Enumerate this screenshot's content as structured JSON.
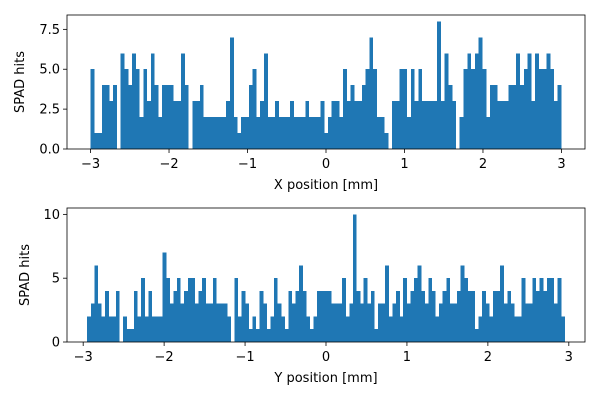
{
  "chart_data": [
    {
      "type": "bar",
      "xlabel": "X position [mm]",
      "ylabel": "SPAD hits",
      "xlim": [
        -3.3,
        3.3
      ],
      "ylim": [
        0,
        8.4
      ],
      "xticks": [
        -3,
        -2,
        -1,
        0,
        1,
        2,
        3
      ],
      "xtick_labels": [
        "−3",
        "−2",
        "−1",
        "0",
        "1",
        "2",
        "3"
      ],
      "yticks": [
        0,
        2.5,
        5,
        7.5
      ],
      "ytick_labels": [
        "0.0",
        "2.5",
        "5.0",
        "7.5"
      ],
      "bin_range": [
        -3.0,
        3.0
      ],
      "bar_color": "#1f77b4",
      "values": [
        5,
        1,
        1,
        4,
        4,
        3,
        4,
        0,
        6,
        5,
        4,
        6,
        5,
        2,
        5,
        3,
        6,
        4,
        2,
        4,
        4,
        4,
        3,
        3,
        6,
        4,
        0,
        3,
        3,
        4,
        2,
        2,
        2,
        2,
        2,
        2,
        3,
        7,
        2,
        1,
        2,
        2,
        4,
        5,
        2,
        3,
        6,
        2,
        2,
        3,
        2,
        2,
        2,
        3,
        2,
        2,
        2,
        3,
        2,
        2,
        2,
        3,
        1,
        2,
        3,
        3,
        2,
        5,
        3,
        4,
        3,
        3,
        4,
        5,
        7,
        5,
        2,
        2,
        1,
        0,
        3,
        3,
        5,
        5,
        2,
        5,
        3,
        5,
        3,
        3,
        3,
        3,
        8,
        3,
        6,
        4,
        3,
        0,
        2,
        5,
        6,
        5,
        6,
        7,
        5,
        2,
        4,
        4,
        3,
        3,
        3,
        4,
        4,
        6,
        4,
        5,
        6,
        3,
        6,
        5,
        5,
        6,
        5,
        3,
        4
      ]
    },
    {
      "type": "bar",
      "xlabel": "Y position [mm]",
      "ylabel": "SPAD hits",
      "xlim": [
        -3.2,
        3.2
      ],
      "ylim": [
        0,
        10.5
      ],
      "xticks": [
        -3,
        -2,
        -1,
        0,
        1,
        2,
        3
      ],
      "xtick_labels": [
        "−3",
        "−2",
        "−1",
        "0",
        "1",
        "2",
        "3"
      ],
      "yticks": [
        0,
        5,
        10
      ],
      "ytick_labels": [
        "0",
        "5",
        "10"
      ],
      "bin_range": [
        -2.95,
        2.95
      ],
      "bar_color": "#1f77b4",
      "values": [
        2,
        3,
        6,
        3,
        2,
        4,
        2,
        2,
        4,
        0,
        2,
        1,
        1,
        4,
        2,
        5,
        2,
        4,
        2,
        2,
        2,
        7,
        5,
        3,
        4,
        5,
        3,
        4,
        5,
        5,
        3,
        4,
        5,
        3,
        3,
        5,
        3,
        3,
        3,
        2,
        0,
        5,
        2,
        4,
        3,
        1,
        2,
        1,
        4,
        3,
        1,
        2,
        5,
        3,
        2,
        1,
        4,
        3,
        4,
        6,
        4,
        2,
        1,
        2,
        4,
        4,
        4,
        4,
        3,
        3,
        3,
        5,
        2,
        3,
        10,
        4,
        3,
        5,
        3,
        4,
        1,
        3,
        3,
        6,
        2,
        3,
        4,
        2,
        5,
        3,
        4,
        5,
        6,
        4,
        3,
        5,
        4,
        2,
        3,
        4,
        5,
        3,
        3,
        4,
        6,
        5,
        4,
        4,
        1,
        2,
        4,
        3,
        2,
        4,
        4,
        6,
        3,
        4,
        3,
        2,
        2,
        5,
        3,
        3,
        5,
        4,
        5,
        4,
        5,
        5,
        3,
        5,
        2
      ]
    }
  ]
}
